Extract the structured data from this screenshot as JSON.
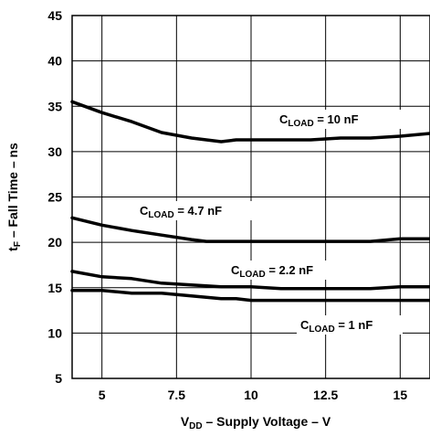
{
  "chart_data": {
    "type": "line",
    "title": "",
    "xlabel": {
      "main": "V",
      "sub": "DD",
      "rest": " – Supply Voltage – V"
    },
    "ylabel": {
      "main": "t",
      "sub": "F",
      "rest": " – Fall Time – ns"
    },
    "xlim": [
      4,
      16
    ],
    "ylim": [
      5,
      45
    ],
    "xticks": [
      5,
      7.5,
      10,
      12.5,
      15
    ],
    "xtick_labels": [
      "5",
      "7.5",
      "10",
      "12.5",
      "15"
    ],
    "yticks": [
      5,
      10,
      15,
      20,
      25,
      30,
      35,
      40,
      45
    ],
    "ytick_labels": [
      "5",
      "10",
      "15",
      "20",
      "25",
      "30",
      "35",
      "40",
      "45"
    ],
    "grid": true,
    "legend": "none",
    "series": [
      {
        "name": "10 nF",
        "label": {
          "main": "C",
          "sub": "LOAD",
          "rest": " = 10 nF"
        },
        "x": [
          4,
          5,
          6,
          7,
          8,
          9,
          9.5,
          10,
          11,
          12,
          13,
          14,
          15,
          16
        ],
        "y": [
          35.5,
          34.3,
          33.3,
          32.1,
          31.5,
          31.1,
          31.3,
          31.3,
          31.3,
          31.3,
          31.5,
          31.5,
          31.7,
          32.0
        ]
      },
      {
        "name": "4.7 nF",
        "label": {
          "main": "C",
          "sub": "LOAD",
          "rest": " = 4.7 nF"
        },
        "x": [
          4,
          5,
          6,
          7,
          8,
          8.5,
          9,
          10,
          11,
          12,
          13,
          14,
          15,
          16
        ],
        "y": [
          22.7,
          21.9,
          21.3,
          20.8,
          20.3,
          20.1,
          20.1,
          20.1,
          20.1,
          20.1,
          20.1,
          20.1,
          20.4,
          20.4
        ]
      },
      {
        "name": "2.2 nF",
        "label": {
          "main": "C",
          "sub": "LOAD",
          "rest": " = 2.2 nF"
        },
        "x": [
          4,
          5,
          6,
          7,
          8,
          9,
          10,
          11,
          12,
          13,
          14,
          15,
          16
        ],
        "y": [
          16.8,
          16.2,
          16.0,
          15.5,
          15.3,
          15.1,
          15.1,
          14.9,
          14.9,
          14.9,
          14.9,
          15.1,
          15.1
        ]
      },
      {
        "name": "1 nF",
        "label": {
          "main": "C",
          "sub": "LOAD",
          "rest": " = 1 nF"
        },
        "x": [
          4,
          5,
          6,
          7,
          8,
          9,
          9.5,
          10,
          11,
          12,
          13,
          14,
          15,
          16
        ],
        "y": [
          14.7,
          14.7,
          14.4,
          14.4,
          14.1,
          13.8,
          13.8,
          13.6,
          13.6,
          13.6,
          13.6,
          13.6,
          13.6,
          13.6
        ]
      }
    ]
  }
}
